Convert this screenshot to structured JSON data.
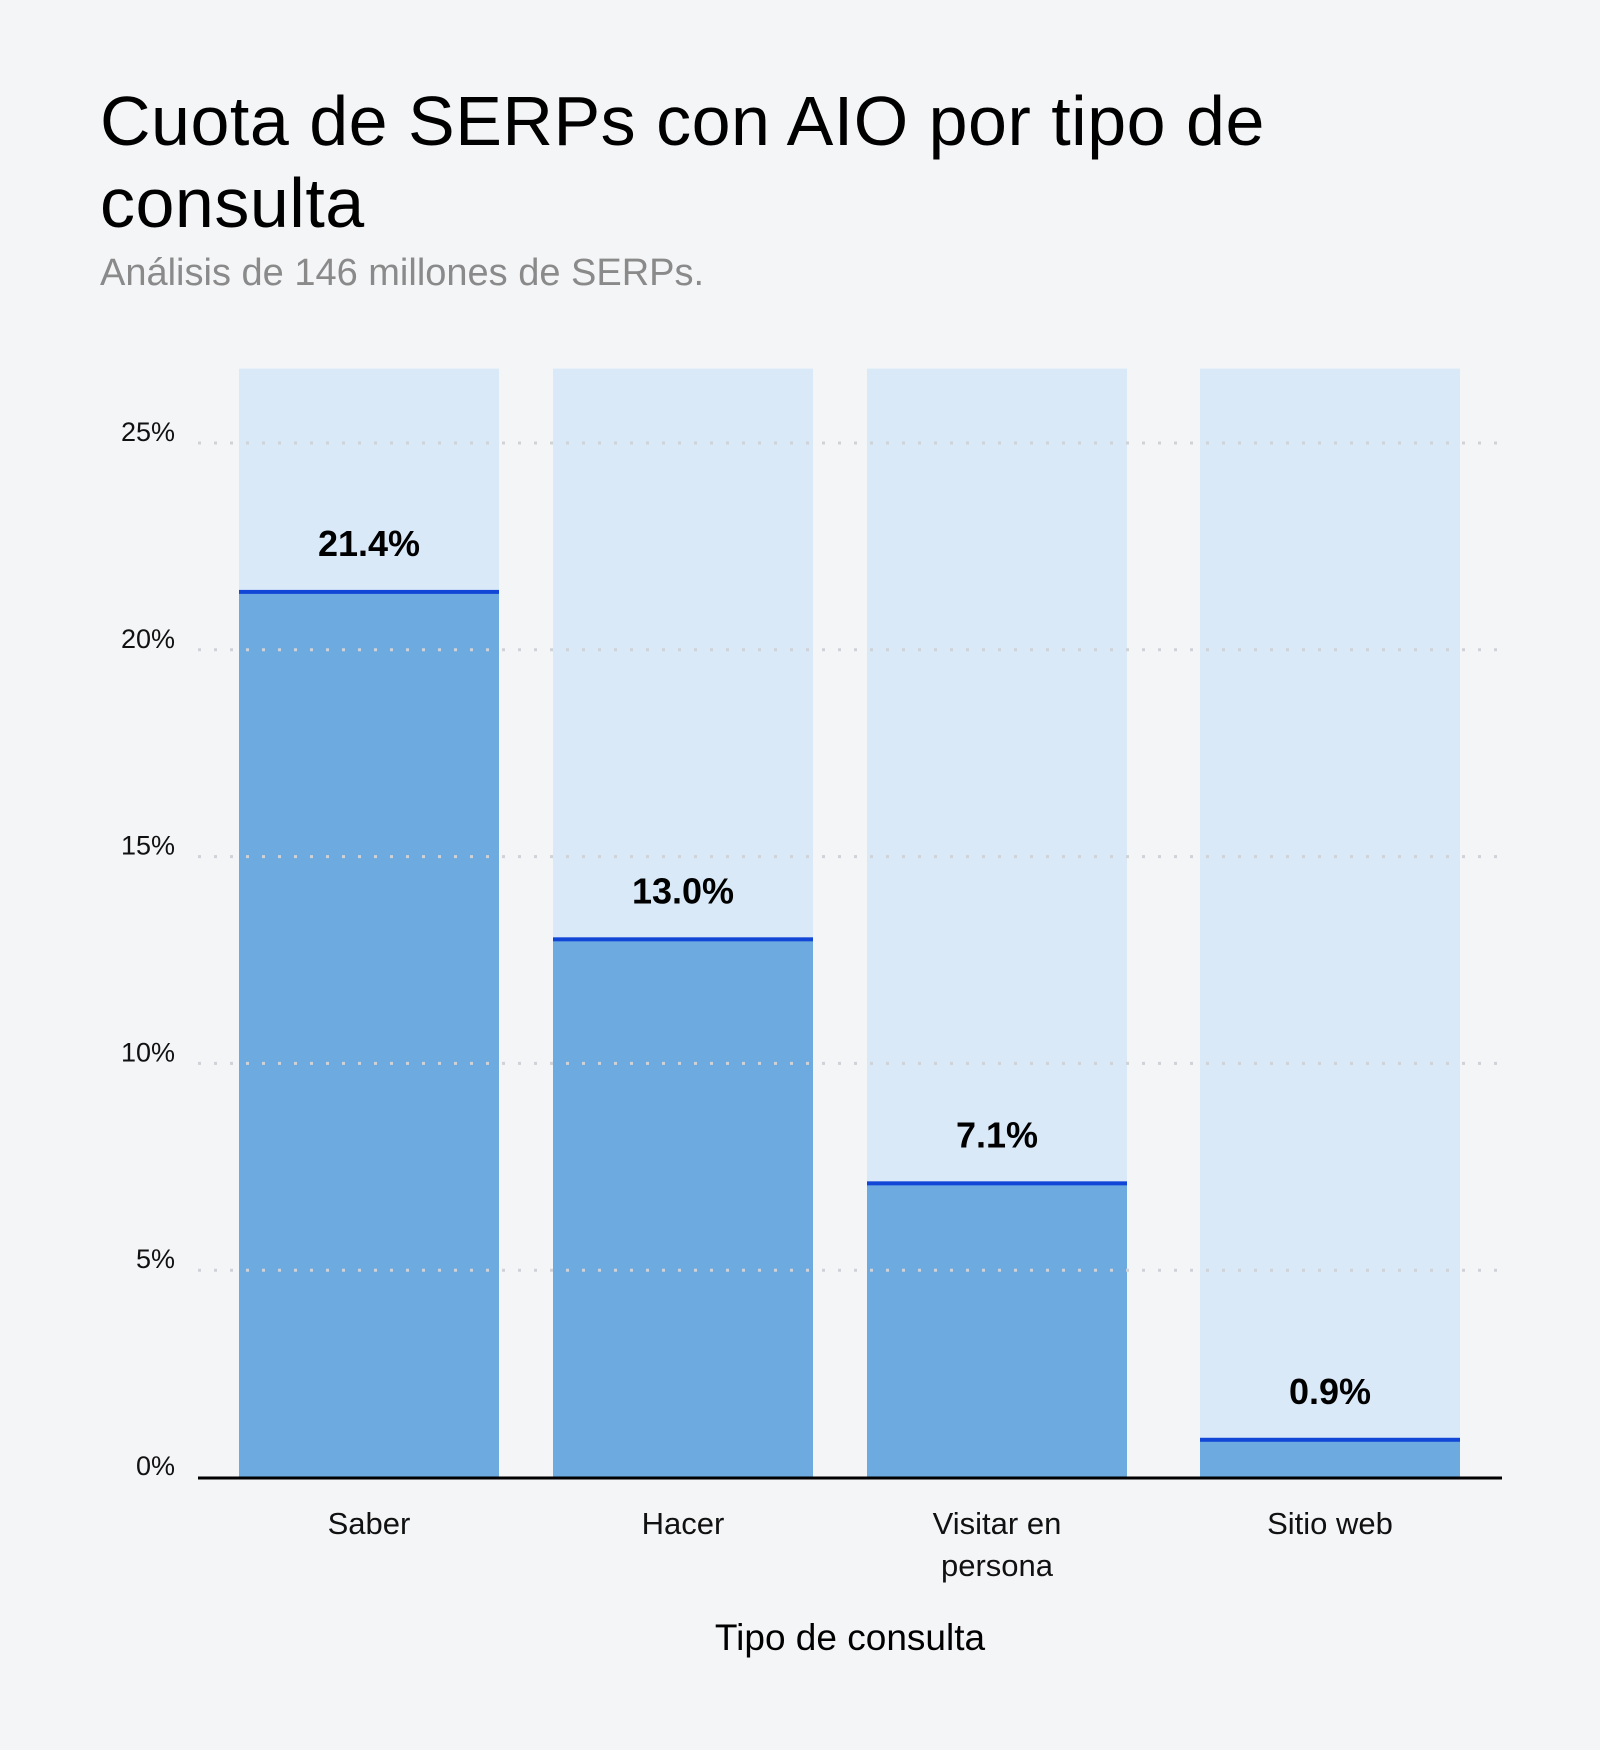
{
  "title": "Cuota de SERPs con AIO por tipo de consulta",
  "subtitle": "Análisis de 146 millones de SERPs.",
  "chart_data": {
    "type": "bar",
    "title": "Cuota de SERPs con AIO por tipo de consulta",
    "subtitle": "Análisis de 146 millones de SERPs.",
    "xlabel": "Tipo de consulta",
    "ylabel": "",
    "categories": [
      [
        "Saber"
      ],
      [
        "Hacer"
      ],
      [
        "Visitar en",
        "persona"
      ],
      [
        "Sitio web"
      ]
    ],
    "values": [
      21.4,
      13.0,
      7.1,
      0.9
    ],
    "value_labels": [
      "21.4%",
      "13.0%",
      "7.1%",
      "0.9%"
    ],
    "ylim": [
      0,
      26.8
    ],
    "yticks": [
      0,
      5,
      10,
      15,
      20,
      25
    ],
    "ytick_labels": [
      "0%",
      "5%",
      "10%",
      "15%",
      "20%",
      "25%"
    ],
    "grid": "horizontal dotted",
    "legend": "none",
    "colors": {
      "fill": "#6daae0",
      "background_bar": "#d9e9f8",
      "top_line": "#1246d6",
      "grid": "#cfd2d6",
      "axis": "#000000"
    }
  }
}
